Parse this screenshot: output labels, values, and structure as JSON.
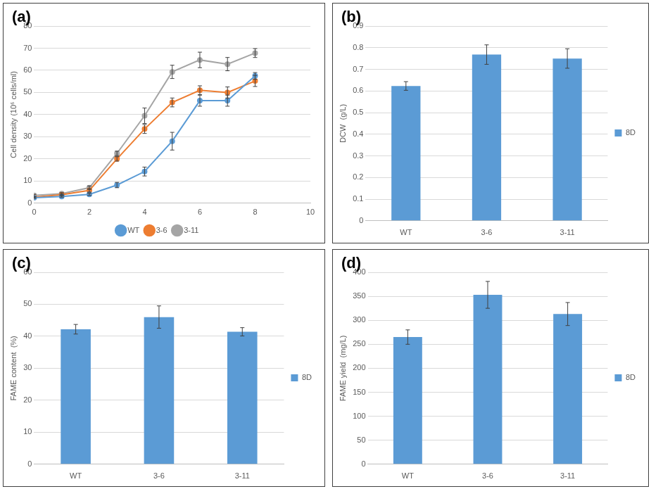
{
  "chart_data": [
    {
      "type": "line",
      "panel_label": "(a)",
      "y_label": "Cell density (10⁶ cells/ml)",
      "x": [
        0,
        1,
        2,
        3,
        4,
        5,
        6,
        7,
        8
      ],
      "xlim": [
        0,
        10
      ],
      "xticks": [
        0,
        2,
        4,
        6,
        8,
        10
      ],
      "ylim": [
        0,
        80
      ],
      "yticks": [
        0,
        10,
        20,
        30,
        40,
        50,
        60,
        70,
        80
      ],
      "grid": true,
      "legend": "bottom",
      "series": [
        {
          "name": "WT",
          "color": "#5b9bd5",
          "marker": "circle",
          "values": [
            2.5,
            3,
            4,
            8.2,
            14.3,
            28,
            46.3,
            46.3,
            57.5
          ],
          "errors": [
            0.3,
            0.3,
            0.5,
            1.2,
            2,
            4,
            2.5,
            2.5,
            1.5
          ]
        },
        {
          "name": "3-6",
          "color": "#ed7d31",
          "marker": "circle",
          "values": [
            2.7,
            3.8,
            5.8,
            20,
            33.5,
            45.5,
            51,
            50,
            55.2
          ],
          "errors": [
            0.3,
            0.4,
            0.8,
            1,
            2,
            2,
            2,
            2.5,
            2.5
          ]
        },
        {
          "name": "3-11",
          "color": "#a5a5a5",
          "marker": "circle",
          "values": [
            3.5,
            4.3,
            7,
            22.5,
            39.5,
            59.3,
            64.7,
            62.8,
            67.8
          ],
          "errors": [
            0.5,
            0.5,
            0.8,
            1,
            3.5,
            3,
            3.5,
            3,
            2
          ]
        }
      ]
    },
    {
      "type": "bar",
      "panel_label": "(b)",
      "y_label": "DCW  (g/L)",
      "categories": [
        "WT",
        "3-6",
        "3-11"
      ],
      "ylim": [
        0,
        0.9
      ],
      "yticks": [
        0,
        0.1,
        0.2,
        0.3,
        0.4,
        0.5,
        0.6,
        0.7,
        0.8,
        0.9
      ],
      "grid": true,
      "legend": "right",
      "series": [
        {
          "name": "8D",
          "color": "#5b9bd5",
          "values": [
            0.623,
            0.768,
            0.75
          ],
          "errors": [
            0.02,
            0.045,
            0.045
          ]
        }
      ]
    },
    {
      "type": "bar",
      "panel_label": "(c)",
      "y_label": "FAME content  (%)",
      "categories": [
        "WT",
        "3-6",
        "3-11"
      ],
      "ylim": [
        0,
        60
      ],
      "yticks": [
        0,
        10,
        20,
        30,
        40,
        50,
        60
      ],
      "grid": true,
      "legend": "right",
      "series": [
        {
          "name": "8D",
          "color": "#5b9bd5",
          "values": [
            42.2,
            46,
            41.4
          ],
          "errors": [
            1.5,
            3.5,
            1.3
          ]
        }
      ]
    },
    {
      "type": "bar",
      "panel_label": "(d)",
      "y_label": "FAME yield  (mg/L)",
      "categories": [
        "WT",
        "3-6",
        "3-11"
      ],
      "ylim": [
        0,
        400
      ],
      "yticks": [
        0,
        50,
        100,
        150,
        200,
        250,
        300,
        350,
        400
      ],
      "grid": true,
      "legend": "right",
      "series": [
        {
          "name": "8D",
          "color": "#5b9bd5",
          "values": [
            265,
            353,
            313
          ],
          "errors": [
            15,
            28,
            24
          ]
        }
      ]
    }
  ]
}
